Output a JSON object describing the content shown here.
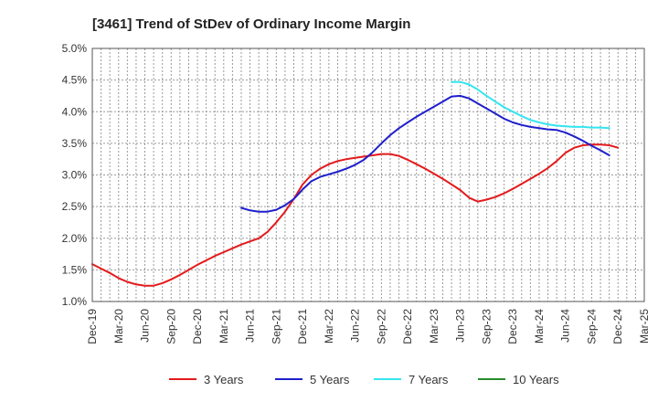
{
  "chart_data": {
    "type": "line",
    "title": "[3461]  Trend of StDev of Ordinary Income Margin",
    "xlabel": "",
    "ylabel": "",
    "x_ticks": [
      "Dec-19",
      "Mar-20",
      "Jun-20",
      "Sep-20",
      "Dec-20",
      "Mar-21",
      "Jun-21",
      "Sep-21",
      "Dec-21",
      "Mar-22",
      "Jun-22",
      "Sep-22",
      "Dec-22",
      "Mar-23",
      "Jun-23",
      "Sep-23",
      "Dec-23",
      "Mar-24",
      "Jun-24",
      "Sep-24",
      "Dec-24",
      "Mar-25"
    ],
    "y_ticks": [
      "1.0%",
      "1.5%",
      "2.0%",
      "2.5%",
      "3.0%",
      "3.5%",
      "4.0%",
      "4.5%",
      "5.0%"
    ],
    "ylim": [
      1.0,
      5.0
    ],
    "grid": true,
    "legend_position": "bottom",
    "series": [
      {
        "name": "3 Years",
        "color": "#e31a1c",
        "points": [
          [
            "Dec-19",
            1.59
          ],
          [
            "Jan-20",
            1.52
          ],
          [
            "Feb-20",
            1.45
          ],
          [
            "Mar-20",
            1.37
          ],
          [
            "Apr-20",
            1.31
          ],
          [
            "May-20",
            1.27
          ],
          [
            "Jun-20",
            1.25
          ],
          [
            "Jul-20",
            1.25
          ],
          [
            "Aug-20",
            1.29
          ],
          [
            "Sep-20",
            1.35
          ],
          [
            "Oct-20",
            1.42
          ],
          [
            "Nov-20",
            1.5
          ],
          [
            "Dec-20",
            1.58
          ],
          [
            "Jan-21",
            1.65
          ],
          [
            "Feb-21",
            1.72
          ],
          [
            "Mar-21",
            1.78
          ],
          [
            "Apr-21",
            1.84
          ],
          [
            "May-21",
            1.9
          ],
          [
            "Jun-21",
            1.95
          ],
          [
            "Jul-21",
            2.0
          ],
          [
            "Aug-21",
            2.1
          ],
          [
            "Sep-21",
            2.25
          ],
          [
            "Oct-21",
            2.42
          ],
          [
            "Nov-21",
            2.62
          ],
          [
            "Dec-21",
            2.85
          ],
          [
            "Jan-22",
            3.0
          ],
          [
            "Feb-22",
            3.1
          ],
          [
            "Mar-22",
            3.17
          ],
          [
            "Apr-22",
            3.22
          ],
          [
            "May-22",
            3.25
          ],
          [
            "Jun-22",
            3.27
          ],
          [
            "Jul-22",
            3.29
          ],
          [
            "Aug-22",
            3.31
          ],
          [
            "Sep-22",
            3.33
          ],
          [
            "Oct-22",
            3.33
          ],
          [
            "Nov-22",
            3.3
          ],
          [
            "Dec-22",
            3.24
          ],
          [
            "Jan-23",
            3.17
          ],
          [
            "Feb-23",
            3.1
          ],
          [
            "Mar-23",
            3.02
          ],
          [
            "Apr-23",
            2.94
          ],
          [
            "May-23",
            2.85
          ],
          [
            "Jun-23",
            2.76
          ],
          [
            "Jul-23",
            2.64
          ],
          [
            "Aug-23",
            2.58
          ],
          [
            "Sep-23",
            2.61
          ],
          [
            "Oct-23",
            2.65
          ],
          [
            "Nov-23",
            2.71
          ],
          [
            "Dec-23",
            2.78
          ],
          [
            "Jan-24",
            2.86
          ],
          [
            "Feb-24",
            2.94
          ],
          [
            "Mar-24",
            3.02
          ],
          [
            "Apr-24",
            3.11
          ],
          [
            "May-24",
            3.22
          ],
          [
            "Jun-24",
            3.35
          ],
          [
            "Jul-24",
            3.43
          ],
          [
            "Aug-24",
            3.47
          ],
          [
            "Sep-24",
            3.48
          ],
          [
            "Oct-24",
            3.48
          ],
          [
            "Nov-24",
            3.47
          ],
          [
            "Dec-24",
            3.43
          ]
        ]
      },
      {
        "name": "5 Years",
        "color": "#1f1fcc",
        "points": [
          [
            "May-21",
            2.48
          ],
          [
            "Jun-21",
            2.44
          ],
          [
            "Jul-21",
            2.42
          ],
          [
            "Aug-21",
            2.42
          ],
          [
            "Sep-21",
            2.45
          ],
          [
            "Oct-21",
            2.52
          ],
          [
            "Nov-21",
            2.62
          ],
          [
            "Dec-21",
            2.77
          ],
          [
            "Jan-22",
            2.9
          ],
          [
            "Feb-22",
            2.97
          ],
          [
            "Mar-22",
            3.01
          ],
          [
            "Apr-22",
            3.05
          ],
          [
            "May-22",
            3.1
          ],
          [
            "Jun-22",
            3.16
          ],
          [
            "Jul-22",
            3.24
          ],
          [
            "Aug-22",
            3.36
          ],
          [
            "Sep-22",
            3.5
          ],
          [
            "Oct-22",
            3.63
          ],
          [
            "Nov-22",
            3.74
          ],
          [
            "Dec-22",
            3.83
          ],
          [
            "Jan-23",
            3.92
          ],
          [
            "Feb-23",
            4.0
          ],
          [
            "Mar-23",
            4.08
          ],
          [
            "Apr-23",
            4.16
          ],
          [
            "May-23",
            4.24
          ],
          [
            "Jun-23",
            4.25
          ],
          [
            "Jul-23",
            4.21
          ],
          [
            "Aug-23",
            4.13
          ],
          [
            "Sep-23",
            4.05
          ],
          [
            "Oct-23",
            3.97
          ],
          [
            "Nov-23",
            3.89
          ],
          [
            "Dec-23",
            3.83
          ],
          [
            "Jan-24",
            3.79
          ],
          [
            "Feb-24",
            3.76
          ],
          [
            "Mar-24",
            3.74
          ],
          [
            "Apr-24",
            3.72
          ],
          [
            "May-24",
            3.71
          ],
          [
            "Jun-24",
            3.67
          ],
          [
            "Jul-24",
            3.61
          ],
          [
            "Aug-24",
            3.54
          ],
          [
            "Sep-24",
            3.46
          ],
          [
            "Oct-24",
            3.39
          ],
          [
            "Nov-24",
            3.31
          ]
        ]
      },
      {
        "name": "7 Years",
        "color": "#33e5f0",
        "points": [
          [
            "May-23",
            4.47
          ],
          [
            "Jun-23",
            4.47
          ],
          [
            "Jul-23",
            4.43
          ],
          [
            "Aug-23",
            4.35
          ],
          [
            "Sep-23",
            4.25
          ],
          [
            "Oct-23",
            4.16
          ],
          [
            "Nov-23",
            4.07
          ],
          [
            "Dec-23",
            4.0
          ],
          [
            "Jan-24",
            3.93
          ],
          [
            "Feb-24",
            3.87
          ],
          [
            "Mar-24",
            3.83
          ],
          [
            "Apr-24",
            3.8
          ],
          [
            "May-24",
            3.78
          ],
          [
            "Jun-24",
            3.77
          ],
          [
            "Jul-24",
            3.76
          ],
          [
            "Aug-24",
            3.76
          ],
          [
            "Sep-24",
            3.75
          ],
          [
            "Oct-24",
            3.75
          ],
          [
            "Nov-24",
            3.74
          ]
        ]
      },
      {
        "name": "10 Years",
        "color": "#2a8a2a",
        "points": []
      }
    ]
  }
}
